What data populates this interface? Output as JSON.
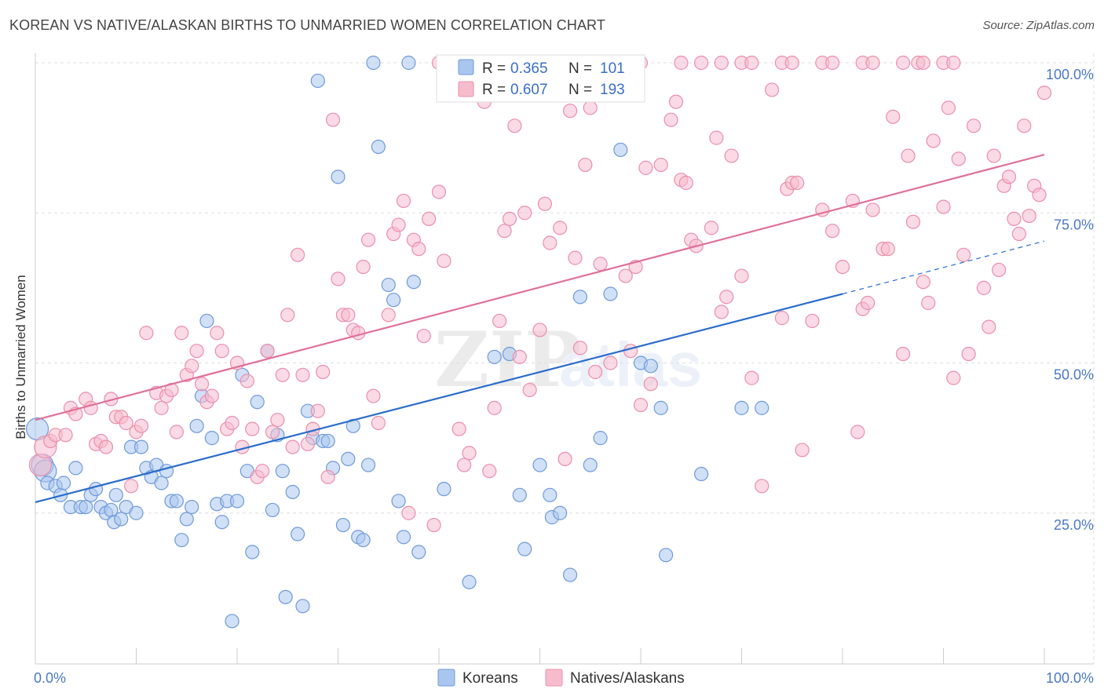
{
  "title": "KOREAN VS NATIVE/ALASKAN BIRTHS TO UNMARRIED WOMEN CORRELATION CHART",
  "source": "Source: ZipAtlas.com",
  "colors": {
    "korean_fill": "#a9c6ee",
    "korean_stroke": "#6f9ad8",
    "korean_line": "#2a6ccc",
    "native_fill": "#f6bccd",
    "native_stroke": "#ea8fac",
    "native_line": "#e0709a",
    "axis_label": "#4a78c8",
    "grid": "#dddddd"
  },
  "chart_data": {
    "type": "scatter",
    "title": "KOREAN VS NATIVE/ALASKAN BIRTHS TO UNMARRIED WOMEN CORRELATION CHART",
    "xlabel": "",
    "ylabel": "Births to Unmarried Women",
    "xlim": [
      0,
      100
    ],
    "ylim": [
      0,
      100
    ],
    "x_tick_labels": [
      "0.0%",
      "100.0%"
    ],
    "y_tick_labels": [
      "25.0%",
      "50.0%",
      "75.0%",
      "100.0%"
    ],
    "y_ticks": [
      25,
      50,
      75,
      100
    ],
    "grid": true,
    "legend_position": "top-center",
    "legend": [
      {
        "r_label": "R =",
        "r_value": "0.365",
        "n_label": "N =",
        "n_value": "101"
      },
      {
        "r_label": "R =",
        "r_value": "0.607",
        "n_label": "N =",
        "n_value": "193"
      }
    ],
    "series": [
      {
        "name": "Koreans",
        "trend": {
          "x": [
            0,
            80
          ],
          "y": [
            26.8,
            61.5
          ],
          "dashed_to": [
            100,
            70.3
          ]
        },
        "points": [
          [
            0.2,
            39
          ],
          [
            0.7,
            33
          ],
          [
            1,
            32
          ],
          [
            1.2,
            30
          ],
          [
            2,
            29.5
          ],
          [
            2.5,
            28
          ],
          [
            2.8,
            30
          ],
          [
            3.5,
            26
          ],
          [
            4,
            32.5
          ],
          [
            4.5,
            26
          ],
          [
            5,
            26
          ],
          [
            5.5,
            28
          ],
          [
            6,
            29
          ],
          [
            6.5,
            26
          ],
          [
            7,
            25
          ],
          [
            7.5,
            25.5
          ],
          [
            7.8,
            23.5
          ],
          [
            8,
            28
          ],
          [
            8.5,
            24
          ],
          [
            9,
            26
          ],
          [
            9.5,
            36
          ],
          [
            10,
            25
          ],
          [
            10.5,
            36
          ],
          [
            11,
            32.5
          ],
          [
            11.5,
            31
          ],
          [
            12,
            33
          ],
          [
            12.5,
            30
          ],
          [
            13,
            32
          ],
          [
            13.5,
            27
          ],
          [
            14,
            27
          ],
          [
            14.5,
            20.5
          ],
          [
            15,
            24
          ],
          [
            15.5,
            26
          ],
          [
            16,
            39.5
          ],
          [
            16.5,
            44.5
          ],
          [
            17,
            57
          ],
          [
            17.5,
            37.5
          ],
          [
            18,
            26.5
          ],
          [
            18.5,
            23.5
          ],
          [
            19,
            27
          ],
          [
            19.5,
            7
          ],
          [
            20,
            27
          ],
          [
            20.5,
            48
          ],
          [
            21,
            32
          ],
          [
            21.5,
            18.5
          ],
          [
            22,
            43.5
          ],
          [
            23,
            52
          ],
          [
            23.5,
            25.5
          ],
          [
            24,
            38
          ],
          [
            24.5,
            32
          ],
          [
            24.8,
            11
          ],
          [
            25.5,
            28.5
          ],
          [
            26,
            21.5
          ],
          [
            26.5,
            9.5
          ],
          [
            27,
            42
          ],
          [
            27.5,
            37.5
          ],
          [
            28,
            97
          ],
          [
            28.5,
            37
          ],
          [
            29,
            37
          ],
          [
            29.5,
            32.5
          ],
          [
            30,
            81
          ],
          [
            30.5,
            23
          ],
          [
            31,
            34
          ],
          [
            31.5,
            39.5
          ],
          [
            32,
            21
          ],
          [
            32.5,
            20.5
          ],
          [
            33,
            33
          ],
          [
            33.5,
            100
          ],
          [
            34,
            86
          ],
          [
            35,
            63
          ],
          [
            35.5,
            60.5
          ],
          [
            36,
            27
          ],
          [
            36.5,
            21
          ],
          [
            37.5,
            63.5
          ],
          [
            38,
            18.5
          ],
          [
            40.5,
            29
          ],
          [
            43,
            13.5
          ],
          [
            45.5,
            51
          ],
          [
            47,
            51.5
          ],
          [
            48,
            28
          ],
          [
            48.5,
            19
          ],
          [
            50,
            33
          ],
          [
            51,
            28
          ],
          [
            51.2,
            24.3
          ],
          [
            52,
            25
          ],
          [
            53,
            14.7
          ],
          [
            54,
            61
          ],
          [
            55,
            33
          ],
          [
            56,
            37.5
          ],
          [
            57,
            61.5
          ],
          [
            58,
            85.5
          ],
          [
            60,
            50
          ],
          [
            61,
            49.5
          ],
          [
            62,
            42.5
          ],
          [
            62.5,
            18
          ],
          [
            66,
            31.5
          ],
          [
            70,
            42.5
          ],
          [
            72,
            42.5
          ],
          [
            37,
            100
          ]
        ]
      },
      {
        "name": "Natives/Alaskans",
        "trend": {
          "x": [
            0,
            100
          ],
          "y": [
            40.5,
            84.7
          ]
        },
        "points": [
          [
            0.5,
            33
          ],
          [
            1,
            36
          ],
          [
            1.5,
            37
          ],
          [
            2,
            38
          ],
          [
            3,
            38
          ],
          [
            3.5,
            42.5
          ],
          [
            4,
            41.5
          ],
          [
            5,
            44
          ],
          [
            5.5,
            42.5
          ],
          [
            6,
            36.5
          ],
          [
            6.5,
            37
          ],
          [
            7,
            36
          ],
          [
            7.5,
            44
          ],
          [
            8,
            41
          ],
          [
            8.5,
            41
          ],
          [
            9,
            40
          ],
          [
            9.5,
            29.5
          ],
          [
            10,
            38.5
          ],
          [
            10.5,
            39.5
          ],
          [
            11,
            55
          ],
          [
            12,
            45
          ],
          [
            12.5,
            42.5
          ],
          [
            13,
            44.5
          ],
          [
            13.5,
            45.5
          ],
          [
            14,
            38.5
          ],
          [
            14.5,
            55
          ],
          [
            15,
            48
          ],
          [
            15.5,
            49.5
          ],
          [
            16,
            52
          ],
          [
            16.5,
            46.5
          ],
          [
            17,
            43.5
          ],
          [
            17.5,
            44.5
          ],
          [
            18,
            55
          ],
          [
            18.5,
            52
          ],
          [
            19,
            39
          ],
          [
            19.5,
            40
          ],
          [
            20,
            50
          ],
          [
            20.5,
            36
          ],
          [
            21,
            47
          ],
          [
            21.5,
            39
          ],
          [
            22,
            31
          ],
          [
            22.5,
            32
          ],
          [
            23,
            52
          ],
          [
            23.5,
            38.5
          ],
          [
            24,
            40.5
          ],
          [
            24.5,
            48
          ],
          [
            25,
            58
          ],
          [
            25.5,
            36
          ],
          [
            26,
            68
          ],
          [
            26.5,
            48
          ],
          [
            27,
            36.5
          ],
          [
            27.5,
            39
          ],
          [
            28,
            42
          ],
          [
            28.5,
            48.5
          ],
          [
            29,
            31
          ],
          [
            29.5,
            90.5
          ],
          [
            30,
            64
          ],
          [
            30.5,
            58
          ],
          [
            31,
            58
          ],
          [
            31.5,
            55.5
          ],
          [
            32,
            55
          ],
          [
            32.5,
            66
          ],
          [
            33,
            70.5
          ],
          [
            33.5,
            44.5
          ],
          [
            34,
            40
          ],
          [
            35,
            58
          ],
          [
            35.5,
            71.5
          ],
          [
            36,
            73
          ],
          [
            36.5,
            77
          ],
          [
            37,
            25
          ],
          [
            37.5,
            70.5
          ],
          [
            38,
            69
          ],
          [
            38.5,
            54.5
          ],
          [
            39,
            74
          ],
          [
            39.5,
            23
          ],
          [
            40,
            78.5
          ],
          [
            40.5,
            67
          ],
          [
            41,
            100
          ],
          [
            42,
            39
          ],
          [
            42.5,
            33
          ],
          [
            43,
            35
          ],
          [
            44,
            96
          ],
          [
            44.5,
            93.5
          ],
          [
            45,
            32
          ],
          [
            45.5,
            42.5
          ],
          [
            46,
            57
          ],
          [
            46.5,
            72
          ],
          [
            47,
            74
          ],
          [
            47.5,
            89.5
          ],
          [
            48,
            51
          ],
          [
            48.5,
            75
          ],
          [
            49,
            45.5
          ],
          [
            50,
            55.5
          ],
          [
            50.5,
            76.5
          ],
          [
            51,
            70
          ],
          [
            52,
            72.5
          ],
          [
            52.5,
            34
          ],
          [
            53,
            92
          ],
          [
            53.5,
            67.5
          ],
          [
            54,
            52.5
          ],
          [
            54.5,
            83
          ],
          [
            55,
            92.5
          ],
          [
            55.5,
            48.5
          ],
          [
            56,
            66.5
          ],
          [
            57,
            50
          ],
          [
            58,
            100
          ],
          [
            58.5,
            64.5
          ],
          [
            59,
            52
          ],
          [
            59.5,
            66
          ],
          [
            60,
            43
          ],
          [
            60.5,
            82.5
          ],
          [
            61,
            46.5
          ],
          [
            62,
            83
          ],
          [
            63,
            90.5
          ],
          [
            63.5,
            93.5
          ],
          [
            64,
            80.5
          ],
          [
            64.5,
            80
          ],
          [
            65,
            70.5
          ],
          [
            65.5,
            69.5
          ],
          [
            66,
            100
          ],
          [
            67,
            72.5
          ],
          [
            67.5,
            87.5
          ],
          [
            68,
            58.5
          ],
          [
            68.5,
            61
          ],
          [
            69,
            84.5
          ],
          [
            70,
            64.5
          ],
          [
            71,
            47.5
          ],
          [
            72,
            29.5
          ],
          [
            73,
            95.5
          ],
          [
            74,
            57.5
          ],
          [
            74.5,
            79
          ],
          [
            75,
            80
          ],
          [
            75.5,
            80
          ],
          [
            76,
            35.5
          ],
          [
            77,
            57
          ],
          [
            78,
            75.5
          ],
          [
            79,
            72
          ],
          [
            80,
            66
          ],
          [
            81,
            77
          ],
          [
            81.5,
            38.5
          ],
          [
            82,
            59
          ],
          [
            82.5,
            60
          ],
          [
            83,
            75.5
          ],
          [
            84,
            69
          ],
          [
            84.5,
            69
          ],
          [
            85,
            91
          ],
          [
            86,
            51.5
          ],
          [
            86.5,
            84.5
          ],
          [
            87,
            73.5
          ],
          [
            88,
            63.5
          ],
          [
            88.5,
            60
          ],
          [
            89,
            87
          ],
          [
            90,
            76
          ],
          [
            90.5,
            92.5
          ],
          [
            91,
            47.5
          ],
          [
            91.5,
            84
          ],
          [
            92,
            68
          ],
          [
            92.5,
            51.5
          ],
          [
            93,
            89.5
          ],
          [
            94,
            62.5
          ],
          [
            94.5,
            56
          ],
          [
            95,
            84.5
          ],
          [
            95.5,
            65.5
          ],
          [
            96,
            79.5
          ],
          [
            96.5,
            81
          ],
          [
            97,
            74
          ],
          [
            97.5,
            71.5
          ],
          [
            98,
            89.5
          ],
          [
            98.5,
            74.5
          ],
          [
            99,
            79.5
          ],
          [
            99.5,
            78
          ],
          [
            100,
            95
          ],
          [
            40,
            100
          ],
          [
            42,
            100
          ],
          [
            45,
            100
          ],
          [
            47,
            100
          ],
          [
            49,
            100
          ],
          [
            51,
            100
          ],
          [
            55,
            100
          ],
          [
            57,
            100
          ],
          [
            60,
            100
          ],
          [
            64,
            100
          ],
          [
            68,
            100
          ],
          [
            70,
            100
          ],
          [
            71,
            100
          ],
          [
            74,
            100
          ],
          [
            75,
            100
          ],
          [
            78,
            100
          ],
          [
            79,
            100
          ],
          [
            82,
            100
          ],
          [
            83,
            100
          ],
          [
            86,
            100
          ],
          [
            87.5,
            100
          ],
          [
            88,
            100
          ],
          [
            90,
            100
          ],
          [
            91,
            100
          ],
          [
            56,
            99
          ]
        ]
      }
    ]
  }
}
